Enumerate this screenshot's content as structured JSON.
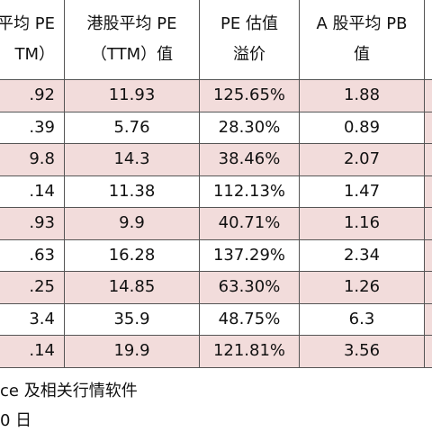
{
  "table": {
    "header": [
      [
        "平均 PE",
        "TM）"
      ],
      [
        "港股平均 PE",
        "（TTM）值"
      ],
      [
        "PE 估值",
        "溢价"
      ],
      [
        "A 股平均 PB",
        "值"
      ],
      [
        "",
        ""
      ]
    ],
    "rows": [
      [
        ".92",
        "11.93",
        "125.65%",
        "1.88",
        ""
      ],
      [
        ".39",
        "5.76",
        "28.30%",
        "0.89",
        ""
      ],
      [
        "9.8",
        "14.3",
        "38.46%",
        "2.07",
        ""
      ],
      [
        ".14",
        "11.38",
        "112.13%",
        "1.47",
        ""
      ],
      [
        ".93",
        "9.9",
        "40.71%",
        "1.16",
        ""
      ],
      [
        ".63",
        "16.28",
        "137.29%",
        "2.34",
        ""
      ],
      [
        ".25",
        "14.85",
        "63.30%",
        "1.26",
        ""
      ],
      [
        "3.4",
        "35.9",
        "48.75%",
        "6.3",
        ""
      ],
      [
        ".14",
        "19.9",
        "121.81%",
        "3.56",
        ""
      ]
    ]
  },
  "footer": [
    "ce 及相关行情软件",
    "0 日"
  ]
}
